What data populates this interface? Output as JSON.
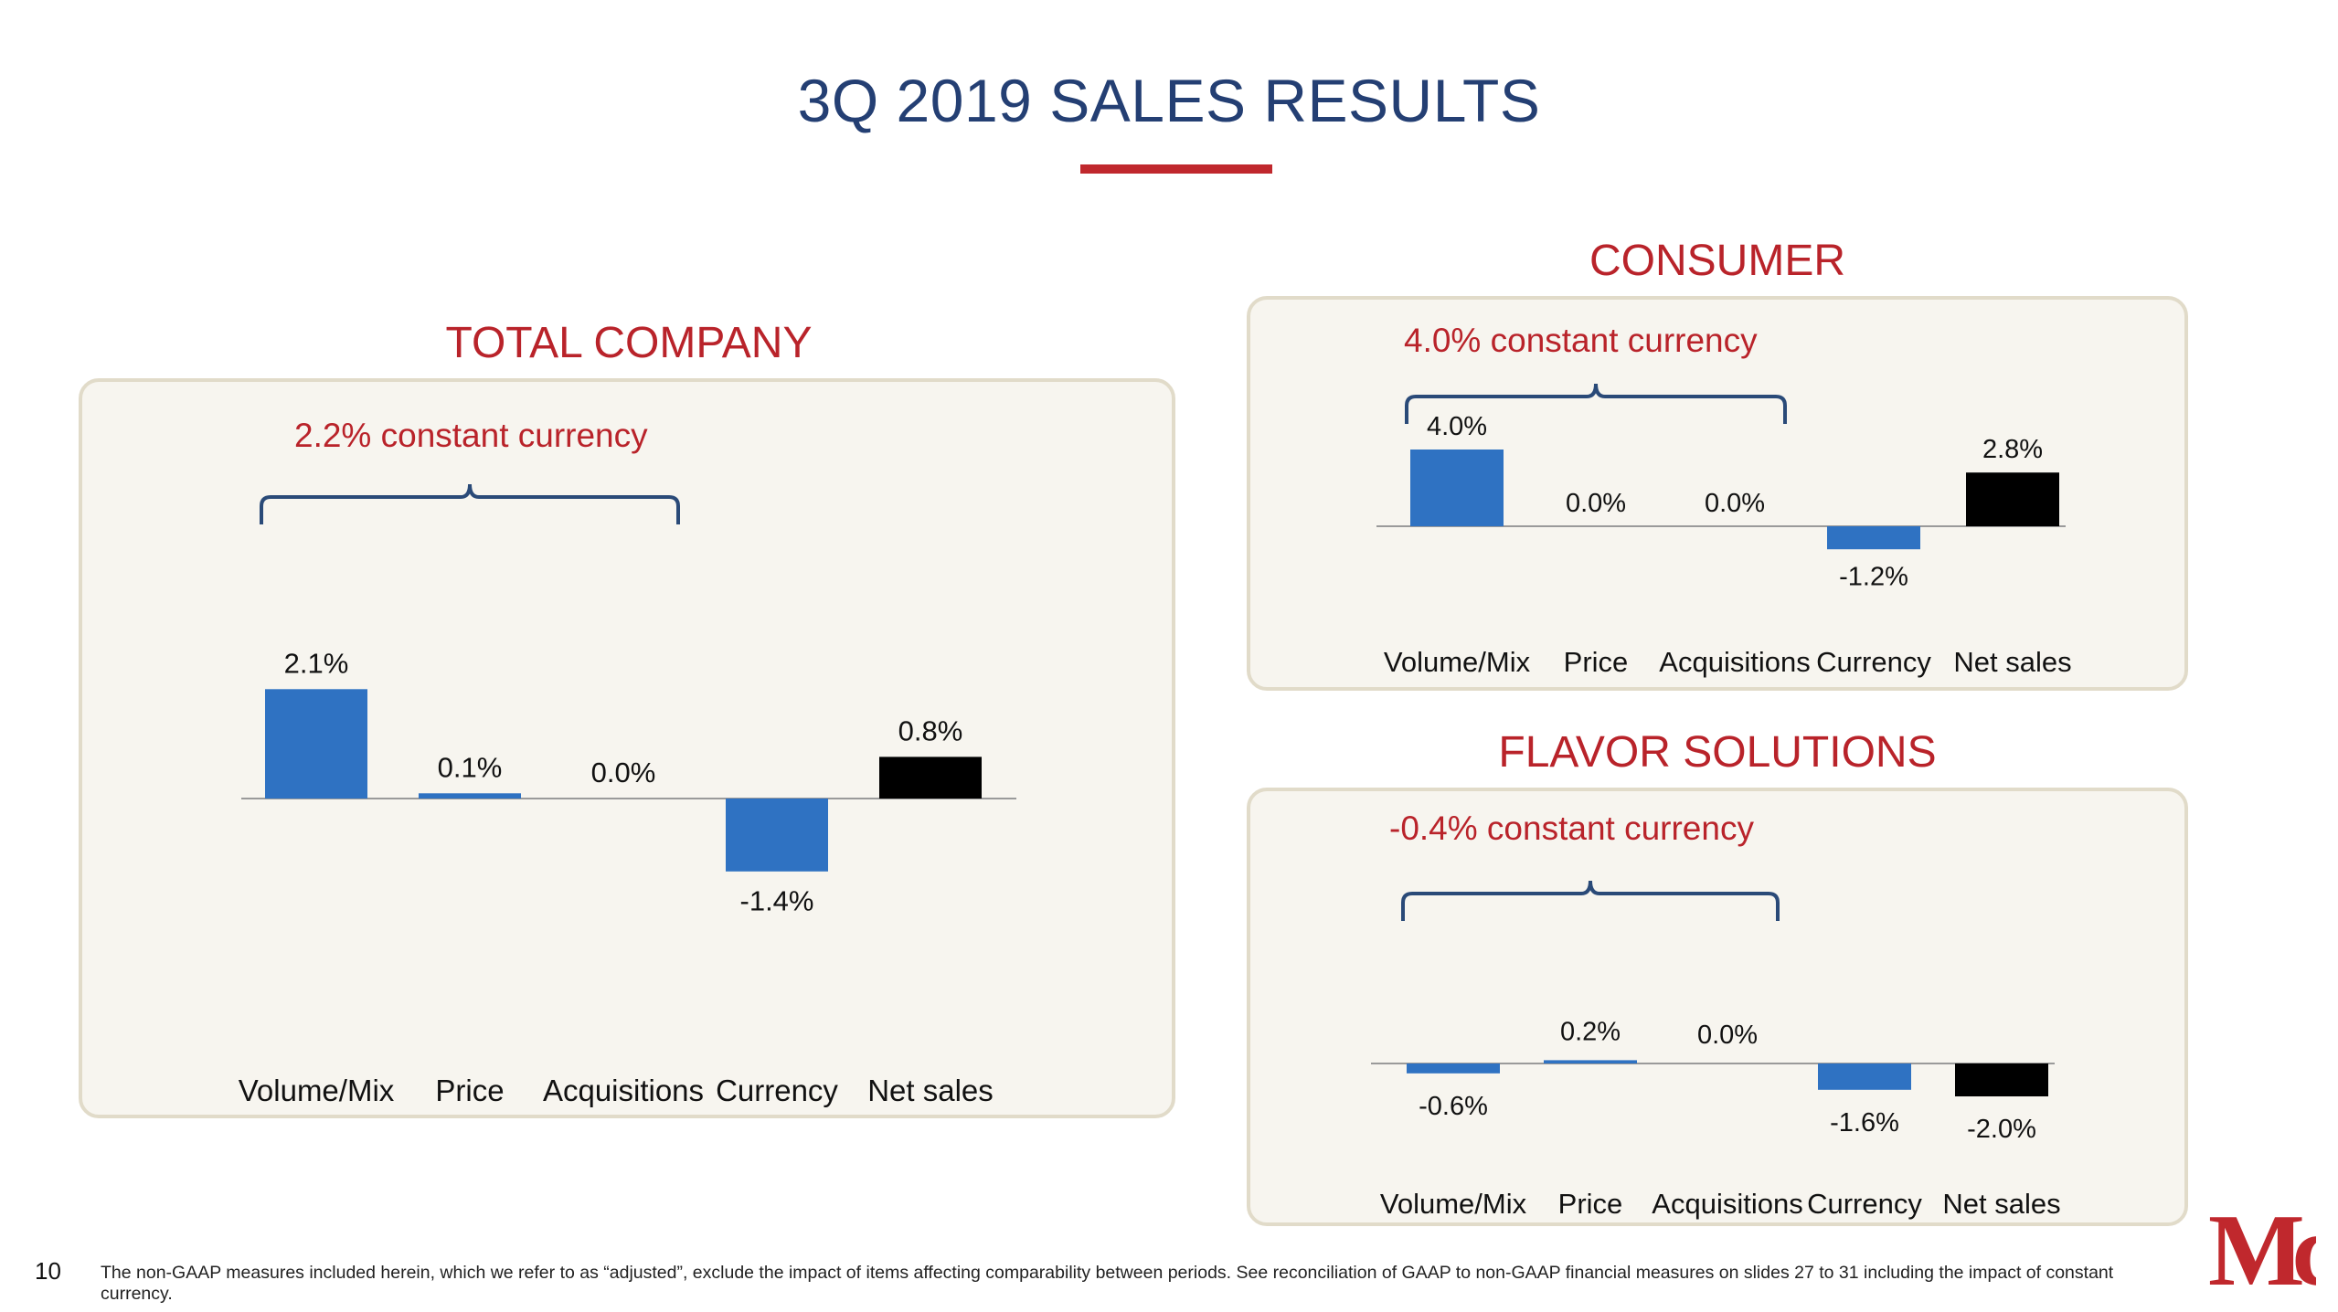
{
  "title": "3Q 2019 SALES RESULTS",
  "page_number": "10",
  "footnote": "The non-GAAP measures included herein, which we refer to as “adjusted”, exclude the impact of items affecting comparability between periods. See reconciliation of GAAP to non-GAAP financial measures on slides 27 to 31 including the impact of constant currency.",
  "colors": {
    "accent": "#b9232a",
    "title": "#243f73",
    "bar": "#2f72c2",
    "total_bar": "#000000",
    "bracket": "#2a4a78"
  },
  "logo": {
    "icon": "mccormick-logo-icon",
    "letters": "Mc"
  },
  "sections": {
    "total": {
      "title": "TOTAL COMPANY",
      "constant_currency": "2.2% constant currency"
    },
    "consumer": {
      "title": "CONSUMER",
      "constant_currency": "4.0% constant currency"
    },
    "flavor": {
      "title": "FLAVOR SOLUTIONS",
      "constant_currency": "-0.4% constant currency"
    }
  },
  "chart_data": [
    {
      "type": "bar",
      "title": "TOTAL COMPANY",
      "categories": [
        "Volume/Mix",
        "Price",
        "Acquisitions",
        "Currency",
        "Net sales"
      ],
      "values": [
        2.1,
        0.1,
        0.0,
        -1.4,
        0.8
      ],
      "data_labels": [
        "2.1%",
        "0.1%",
        "0.0%",
        "-1.4%",
        "0.8%"
      ],
      "unit": "%",
      "annotation": "2.2% constant currency",
      "bracket_spans": [
        "Volume/Mix",
        "Price",
        "Acquisitions"
      ],
      "highlight_last": true
    },
    {
      "type": "bar",
      "title": "CONSUMER",
      "categories": [
        "Volume/Mix",
        "Price",
        "Acquisitions",
        "Currency",
        "Net sales"
      ],
      "values": [
        4.0,
        0.0,
        0.0,
        -1.2,
        2.8
      ],
      "data_labels": [
        "4.0%",
        "0.0%",
        "0.0%",
        "-1.2%",
        "2.8%"
      ],
      "unit": "%",
      "annotation": "4.0% constant currency",
      "bracket_spans": [
        "Volume/Mix",
        "Price",
        "Acquisitions"
      ],
      "highlight_last": true
    },
    {
      "type": "bar",
      "title": "FLAVOR SOLUTIONS",
      "categories": [
        "Volume/Mix",
        "Price",
        "Acquisitions",
        "Currency",
        "Net sales"
      ],
      "values": [
        -0.6,
        0.2,
        0.0,
        -1.6,
        -2.0
      ],
      "data_labels": [
        "-0.6%",
        "0.2%",
        "0.0%",
        "-1.6%",
        "-2.0%"
      ],
      "unit": "%",
      "annotation": "-0.4% constant currency",
      "bracket_spans": [
        "Volume/Mix",
        "Price",
        "Acquisitions"
      ],
      "highlight_last": true
    }
  ]
}
